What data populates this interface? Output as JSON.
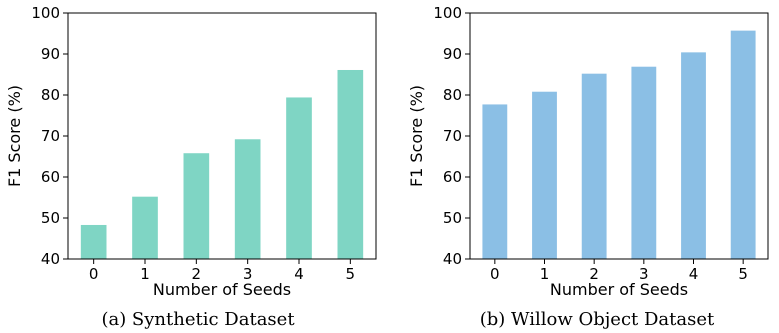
{
  "chart_data": [
    {
      "type": "bar",
      "caption": "(a) Synthetic Dataset",
      "xlabel": "Number of Seeds",
      "ylabel": "F1 Score (%)",
      "categories": [
        "0",
        "1",
        "2",
        "3",
        "4",
        "5"
      ],
      "values": [
        48.3,
        55.2,
        65.8,
        69.2,
        79.4,
        86.1
      ],
      "ylim": [
        40,
        100
      ],
      "yticks": [
        40,
        50,
        60,
        70,
        80,
        90,
        100
      ],
      "color": "#7fd5c4",
      "grid": false
    },
    {
      "type": "bar",
      "caption": "(b) Willow Object Dataset",
      "xlabel": "Number of Seeds",
      "ylabel": "F1 Score (%)",
      "categories": [
        "0",
        "1",
        "2",
        "3",
        "4",
        "5"
      ],
      "values": [
        77.7,
        80.8,
        85.2,
        86.9,
        90.4,
        95.7
      ],
      "ylim": [
        40,
        100
      ],
      "yticks": [
        40,
        50,
        60,
        70,
        80,
        90,
        100
      ],
      "color": "#8bbfe5",
      "grid": false
    }
  ]
}
